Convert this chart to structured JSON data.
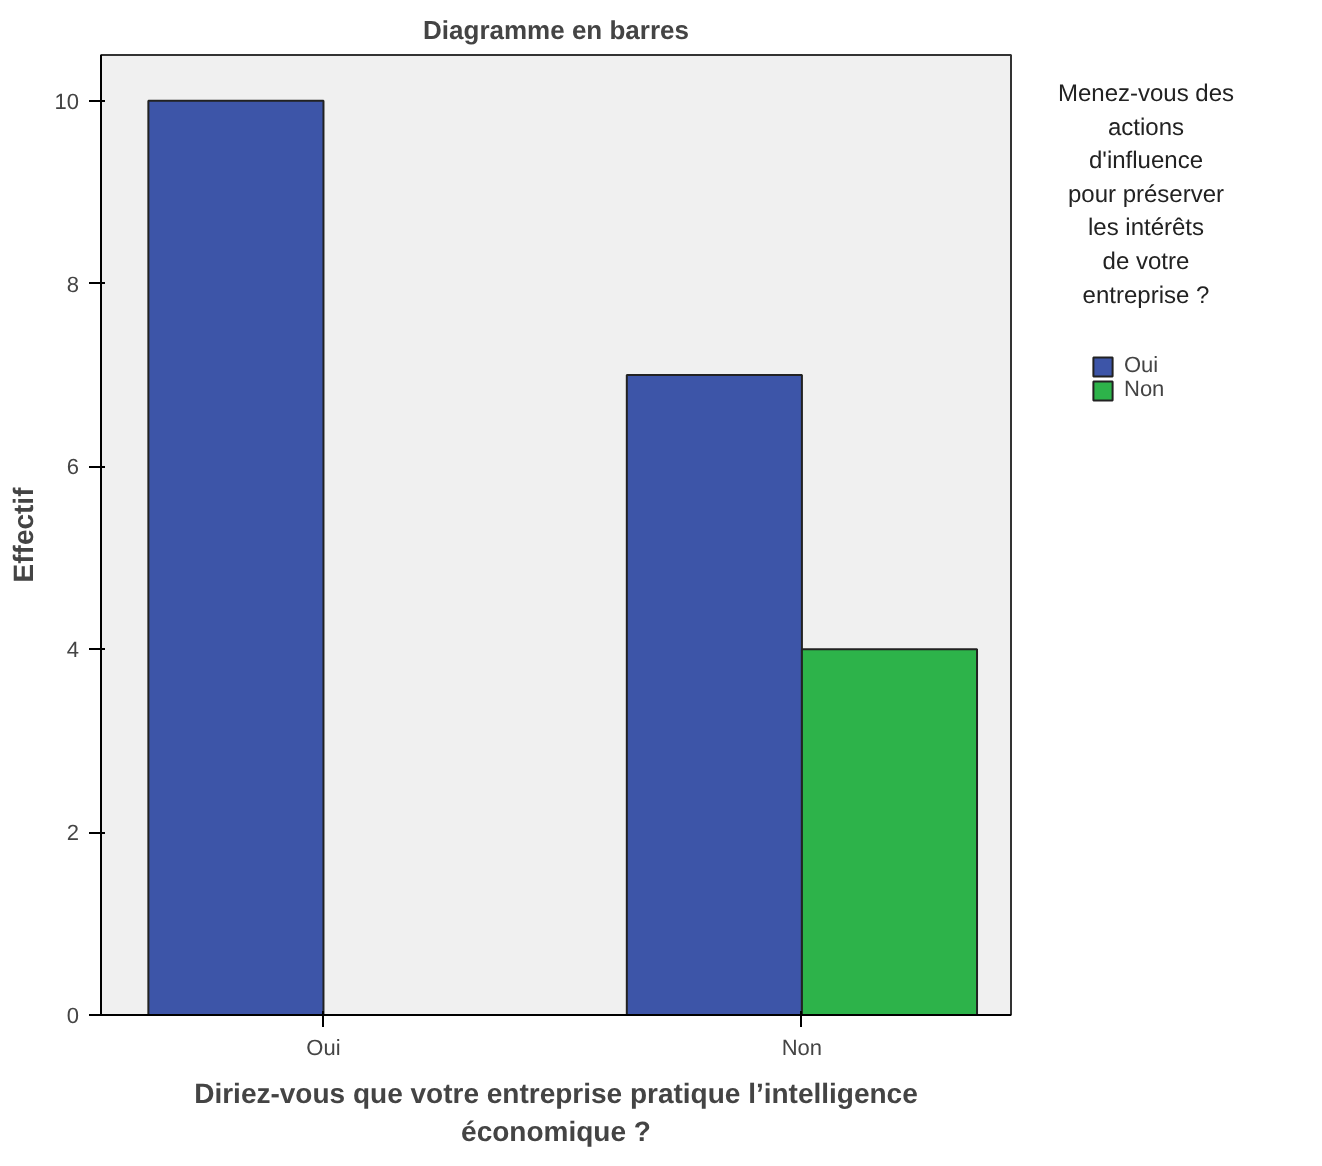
{
  "chart_data": {
    "type": "bar",
    "title": "Diagramme en barres",
    "xlabel": "Diriez-vous que votre entreprise pratique l’intelligence économique ?",
    "ylabel": "Effectif",
    "legend_title": "Menez-vous des actions d'influence pour préserver les intérêts de votre entreprise ?",
    "categories": [
      "Oui",
      "Non"
    ],
    "series": [
      {
        "name": "Oui",
        "color": "#3d55a8",
        "values": [
          10,
          7
        ]
      },
      {
        "name": "Non",
        "color": "#2db34a",
        "values": [
          null,
          4
        ]
      }
    ],
    "ylim": [
      0,
      10.5
    ],
    "yticks": [
      0,
      2,
      4,
      6,
      8,
      10
    ],
    "grid": false,
    "legend": "right"
  }
}
